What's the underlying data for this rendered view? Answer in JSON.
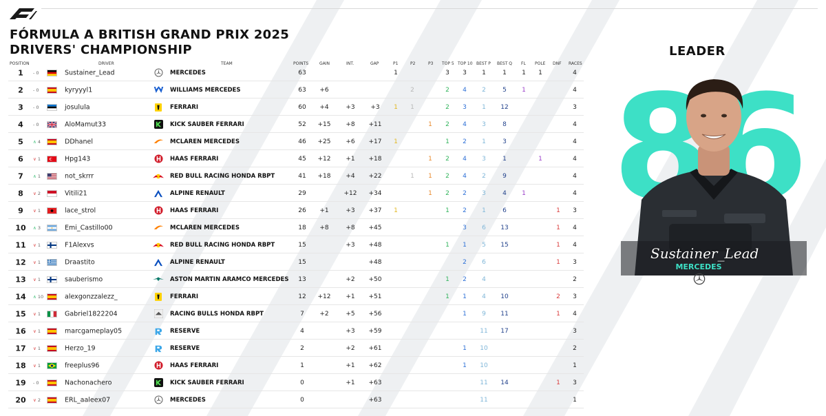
{
  "title_line1": "FÓRMULA A BRITISH GRAND PRIX 2025",
  "title_line2": "DRIVERS' CHAMPIONSHIP",
  "leader_label": "LEADER",
  "headers": {
    "position": "POSITION",
    "driver": "DRIVER",
    "team": "TEAM",
    "points": "POINTS",
    "gain": "GAIN",
    "int": "INT.",
    "gap": "GAP",
    "p1": "P1",
    "p2": "P2",
    "p3": "P3",
    "top5": "TOP 5",
    "top10": "TOP 10",
    "bestp": "BEST P",
    "bestq": "BEST Q",
    "fl": "FL",
    "pole": "POLE",
    "dnf": "DNF",
    "races": "RACES"
  },
  "colors": {
    "accent": "#3de0c6",
    "green": "#2fb35a",
    "red": "#d93b3b"
  },
  "leader": {
    "number": "86",
    "name": "Sustainer_Lead",
    "team": "MERCEDES",
    "team_logo_icon": "mercedes-star-icon"
  },
  "rows": [
    {
      "pos": "1",
      "chg": "- 0",
      "chg_dir": "none",
      "flag": "de",
      "driver": "Sustainer_Lead",
      "team_icon": "mercedes",
      "team": "MERCEDES",
      "points": "63",
      "gain": "",
      "int": "",
      "gap": "",
      "p1": "1",
      "p2": "",
      "p3": "",
      "top5": "3",
      "top10": "3",
      "bestp": "1",
      "bestq": "1",
      "fl": "1",
      "pole": "1",
      "dnf": "",
      "races": "4",
      "cls": {
        "p1": "",
        "top5": "",
        "top10": "",
        "bestp": "",
        "bestq": "",
        "fl": "",
        "pole": ""
      }
    },
    {
      "pos": "2",
      "chg": "- 0",
      "chg_dir": "none",
      "flag": "es",
      "driver": "kyryyyl1",
      "team_icon": "williams",
      "team": "WILLIAMS MERCEDES",
      "points": "63",
      "gain": "+6",
      "int": "",
      "gap": "",
      "p1": "",
      "p2": "2",
      "p3": "",
      "top5": "2",
      "top10": "4",
      "bestp": "2",
      "bestq": "5",
      "fl": "1",
      "pole": "",
      "dnf": "",
      "races": "4",
      "cls": {
        "p2": "lightgrey",
        "top5": "green",
        "top10": "blue",
        "bestp": "lightblue",
        "bestq": "darkblue",
        "fl": "purple"
      }
    },
    {
      "pos": "3",
      "chg": "- 0",
      "chg_dir": "none",
      "flag": "ee",
      "driver": "josulula",
      "team_icon": "ferrari",
      "team": "FERRARI",
      "points": "60",
      "gain": "+4",
      "int": "+3",
      "gap": "+3",
      "p1": "1",
      "p2": "1",
      "p3": "",
      "top5": "2",
      "top10": "3",
      "bestp": "1",
      "bestq": "12",
      "fl": "",
      "pole": "",
      "dnf": "",
      "races": "3",
      "cls": {
        "p1": "yellow",
        "p2": "lightgrey",
        "top5": "green",
        "top10": "blue",
        "bestp": "lightblue",
        "bestq": "darkblue"
      }
    },
    {
      "pos": "4",
      "chg": "- 0",
      "chg_dir": "none",
      "flag": "gb",
      "driver": "AloMamut33",
      "team_icon": "sauber",
      "team": "KICK SAUBER FERRARI",
      "points": "52",
      "gain": "+15",
      "int": "+8",
      "gap": "+11",
      "p1": "",
      "p2": "",
      "p3": "1",
      "top5": "2",
      "top10": "4",
      "bestp": "3",
      "bestq": "8",
      "fl": "",
      "pole": "",
      "dnf": "",
      "races": "4",
      "cls": {
        "p3": "orange",
        "top5": "green",
        "top10": "blue",
        "bestp": "lightblue",
        "bestq": "darkblue"
      }
    },
    {
      "pos": "5",
      "chg": "4",
      "chg_dir": "up",
      "flag": "es",
      "driver": "DDhanel",
      "team_icon": "mclaren",
      "team": "McLAREN MERCEDES",
      "points": "46",
      "gain": "+25",
      "int": "+6",
      "gap": "+17",
      "p1": "1",
      "p2": "",
      "p3": "",
      "top5": "1",
      "top10": "2",
      "bestp": "1",
      "bestq": "3",
      "fl": "",
      "pole": "",
      "dnf": "",
      "races": "4",
      "cls": {
        "p1": "yellow",
        "top5": "green",
        "top10": "blue",
        "bestp": "lightblue",
        "bestq": "darkblue"
      }
    },
    {
      "pos": "6",
      "chg": "1",
      "chg_dir": "down",
      "flag": "tr",
      "driver": "Hpg143",
      "team_icon": "haas",
      "team": "HAAS FERRARI",
      "points": "45",
      "gain": "+12",
      "int": "+1",
      "gap": "+18",
      "p1": "",
      "p2": "",
      "p3": "1",
      "top5": "2",
      "top10": "4",
      "bestp": "3",
      "bestq": "1",
      "fl": "",
      "pole": "1",
      "dnf": "",
      "races": "4",
      "cls": {
        "p3": "orange",
        "top5": "green",
        "top10": "blue",
        "bestp": "lightblue",
        "bestq": "darkblue",
        "pole": "purple"
      }
    },
    {
      "pos": "7",
      "chg": "1",
      "chg_dir": "up",
      "flag": "us",
      "driver": "not_skrrr",
      "team_icon": "redbull",
      "team": "RED BULL RACING HONDA RBPT",
      "points": "41",
      "gain": "+18",
      "int": "+4",
      "gap": "+22",
      "p1": "",
      "p2": "1",
      "p3": "1",
      "top5": "2",
      "top10": "4",
      "bestp": "2",
      "bestq": "9",
      "fl": "",
      "pole": "",
      "dnf": "",
      "races": "4",
      "cls": {
        "p2": "lightgrey",
        "p3": "orange",
        "top5": "green",
        "top10": "blue",
        "bestp": "lightblue",
        "bestq": "darkblue"
      }
    },
    {
      "pos": "8",
      "chg": "2",
      "chg_dir": "down",
      "flag": "mc",
      "driver": "Vitili21",
      "team_icon": "alpine",
      "team": "ALPINE RENAULT",
      "points": "29",
      "gain": "",
      "int": "+12",
      "gap": "+34",
      "p1": "",
      "p2": "",
      "p3": "1",
      "top5": "2",
      "top10": "2",
      "bestp": "3",
      "bestq": "4",
      "fl": "1",
      "pole": "",
      "dnf": "",
      "races": "4",
      "cls": {
        "p3": "orange",
        "top5": "green",
        "top10": "blue",
        "bestp": "lightblue",
        "bestq": "darkblue",
        "fl": "purple"
      }
    },
    {
      "pos": "9",
      "chg": "1",
      "chg_dir": "down",
      "flag": "al",
      "driver": "lace_strol",
      "team_icon": "haas",
      "team": "HAAS FERRARI",
      "points": "26",
      "gain": "+1",
      "int": "+3",
      "gap": "+37",
      "p1": "1",
      "p2": "",
      "p3": "",
      "top5": "1",
      "top10": "2",
      "bestp": "1",
      "bestq": "6",
      "fl": "",
      "pole": "",
      "dnf": "1",
      "races": "3",
      "cls": {
        "p1": "yellow",
        "top5": "green",
        "top10": "blue",
        "bestp": "lightblue",
        "bestq": "darkblue",
        "dnf": "red"
      }
    },
    {
      "pos": "10",
      "chg": "3",
      "chg_dir": "up",
      "flag": "ar",
      "driver": "Emi_Castillo00",
      "team_icon": "mclaren",
      "team": "McLAREN MERCEDES",
      "points": "18",
      "gain": "+8",
      "int": "+8",
      "gap": "+45",
      "p1": "",
      "p2": "",
      "p3": "",
      "top5": "",
      "top10": "3",
      "bestp": "6",
      "bestq": "13",
      "fl": "",
      "pole": "",
      "dnf": "1",
      "races": "4",
      "cls": {
        "top10": "blue",
        "bestp": "lightblue",
        "bestq": "darkblue",
        "dnf": "red"
      }
    },
    {
      "pos": "11",
      "chg": "1",
      "chg_dir": "down",
      "flag": "fi",
      "driver": "F1Alexvs",
      "team_icon": "redbull",
      "team": "RED BULL RACING HONDA RBPT",
      "points": "15",
      "gain": "",
      "int": "+3",
      "gap": "+48",
      "p1": "",
      "p2": "",
      "p3": "",
      "top5": "1",
      "top10": "1",
      "bestp": "5",
      "bestq": "15",
      "fl": "",
      "pole": "",
      "dnf": "1",
      "races": "4",
      "cls": {
        "top5": "green",
        "top10": "blue",
        "bestp": "lightblue",
        "bestq": "darkblue",
        "dnf": "red"
      }
    },
    {
      "pos": "12",
      "chg": "1",
      "chg_dir": "down",
      "flag": "gr",
      "driver": "Draastito",
      "team_icon": "alpine",
      "team": "ALPINE RENAULT",
      "points": "15",
      "gain": "",
      "int": "",
      "gap": "+48",
      "p1": "",
      "p2": "",
      "p3": "",
      "top5": "",
      "top10": "2",
      "bestp": "6",
      "bestq": "",
      "fl": "",
      "pole": "",
      "dnf": "1",
      "races": "3",
      "cls": {
        "top10": "blue",
        "bestp": "lightblue",
        "dnf": "red"
      }
    },
    {
      "pos": "13",
      "chg": "1",
      "chg_dir": "down",
      "flag": "fi",
      "driver": "sauberismo",
      "team_icon": "astonmartin",
      "team": "ASTON MARTIN ARAMCO MERCEDES",
      "points": "13",
      "gain": "",
      "int": "+2",
      "gap": "+50",
      "p1": "",
      "p2": "",
      "p3": "",
      "top5": "1",
      "top10": "2",
      "bestp": "4",
      "bestq": "",
      "fl": "",
      "pole": "",
      "dnf": "",
      "races": "2",
      "cls": {
        "top5": "green",
        "top10": "blue",
        "bestp": "lightblue"
      }
    },
    {
      "pos": "14",
      "chg": "10",
      "chg_dir": "up",
      "flag": "es",
      "driver": "alexgonzzalezz_",
      "team_icon": "ferrari",
      "team": "FERRARI",
      "points": "12",
      "gain": "+12",
      "int": "+1",
      "gap": "+51",
      "p1": "",
      "p2": "",
      "p3": "",
      "top5": "1",
      "top10": "1",
      "bestp": "4",
      "bestq": "10",
      "fl": "",
      "pole": "",
      "dnf": "2",
      "races": "3",
      "cls": {
        "top5": "green",
        "top10": "blue",
        "bestp": "lightblue",
        "bestq": "darkblue",
        "dnf": "red"
      }
    },
    {
      "pos": "15",
      "chg": "1",
      "chg_dir": "down",
      "flag": "it",
      "driver": "Gabriel1822204",
      "team_icon": "racingbulls",
      "team": "RACING BULLS HONDA RBPT",
      "points": "7",
      "gain": "+2",
      "int": "+5",
      "gap": "+56",
      "p1": "",
      "p2": "",
      "p3": "",
      "top5": "",
      "top10": "1",
      "bestp": "9",
      "bestq": "11",
      "fl": "",
      "pole": "",
      "dnf": "1",
      "races": "4",
      "cls": {
        "top10": "blue",
        "bestp": "lightblue",
        "bestq": "darkblue",
        "dnf": "red"
      }
    },
    {
      "pos": "16",
      "chg": "1",
      "chg_dir": "down",
      "flag": "es",
      "driver": "marcgameplay05",
      "team_icon": "reserve",
      "team": "RESERVE",
      "points": "4",
      "gain": "",
      "int": "+3",
      "gap": "+59",
      "p1": "",
      "p2": "",
      "p3": "",
      "top5": "",
      "top10": "",
      "bestp": "11",
      "bestq": "17",
      "fl": "",
      "pole": "",
      "dnf": "",
      "races": "3",
      "cls": {
        "bestp": "lightblue",
        "bestq": "darkblue"
      }
    },
    {
      "pos": "17",
      "chg": "1",
      "chg_dir": "down",
      "flag": "es",
      "driver": "Herzo_19",
      "team_icon": "reserve",
      "team": "RESERVE",
      "points": "2",
      "gain": "",
      "int": "+2",
      "gap": "+61",
      "p1": "",
      "p2": "",
      "p3": "",
      "top5": "",
      "top10": "1",
      "bestp": "10",
      "bestq": "",
      "fl": "",
      "pole": "",
      "dnf": "",
      "races": "2",
      "cls": {
        "top10": "blue",
        "bestp": "lightblue"
      }
    },
    {
      "pos": "18",
      "chg": "1",
      "chg_dir": "down",
      "flag": "br",
      "driver": "freeplus96",
      "team_icon": "haas",
      "team": "HAAS FERRARI",
      "points": "1",
      "gain": "",
      "int": "+1",
      "gap": "+62",
      "p1": "",
      "p2": "",
      "p3": "",
      "top5": "",
      "top10": "1",
      "bestp": "10",
      "bestq": "",
      "fl": "",
      "pole": "",
      "dnf": "",
      "races": "1",
      "cls": {
        "top10": "blue",
        "bestp": "lightblue"
      }
    },
    {
      "pos": "19",
      "chg": "- 0",
      "chg_dir": "none",
      "flag": "es",
      "driver": "Nachonachero",
      "team_icon": "sauber",
      "team": "KICK SAUBER FERRARI",
      "points": "0",
      "gain": "",
      "int": "+1",
      "gap": "+63",
      "p1": "",
      "p2": "",
      "p3": "",
      "top5": "",
      "top10": "",
      "bestp": "11",
      "bestq": "14",
      "fl": "",
      "pole": "",
      "dnf": "1",
      "races": "3",
      "cls": {
        "bestp": "lightblue",
        "bestq": "darkblue",
        "dnf": "red"
      }
    },
    {
      "pos": "20",
      "chg": "2",
      "chg_dir": "down",
      "flag": "es",
      "driver": "ERL_aaleex07",
      "team_icon": "mercedes",
      "team": "MERCEDES",
      "points": "0",
      "gain": "",
      "int": "",
      "gap": "+63",
      "p1": "",
      "p2": "",
      "p3": "",
      "top5": "",
      "top10": "",
      "bestp": "11",
      "bestq": "",
      "fl": "",
      "pole": "",
      "dnf": "",
      "races": "1",
      "cls": {
        "bestp": "lightblue"
      }
    }
  ]
}
